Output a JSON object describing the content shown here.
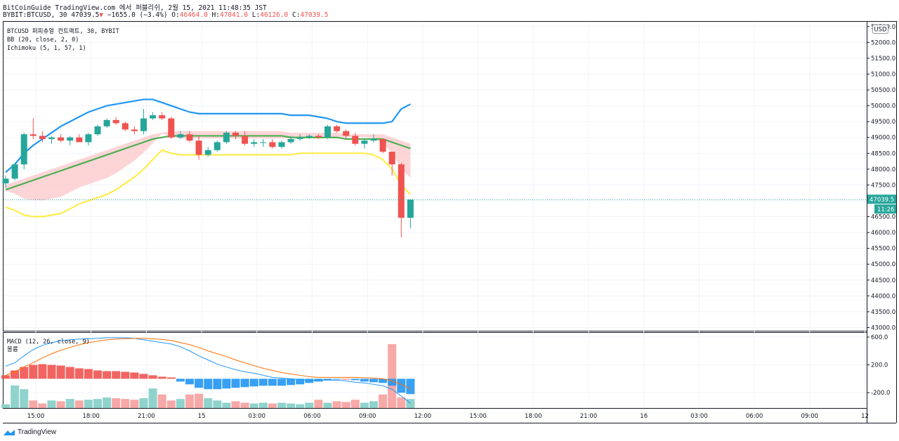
{
  "header": {
    "line1": "BitCoinGuide TradingView.com 에서 퍼블리쉬, 2월 15, 2021 11:48:35 JST",
    "symbol": "BYBIT:BTCUSD, 30",
    "last": "47039.5",
    "change_arrow": "▼",
    "change": "−1655.0 (−3.4%)",
    "o_label": "O:",
    "o": "46464.0",
    "h_label": "H:",
    "h": "47041.0",
    "l_label": "L:",
    "l": "46126.0",
    "c_label": "C:",
    "c": "47039.5"
  },
  "legend": {
    "line1": "BTCUSD 퍼피츄얼 컨트랙트, 30, BYBIT",
    "line2": "BB (20, close, 2, 0)",
    "line3": "Ichimoku (5, 1, 57, 1)"
  },
  "macd_legend": {
    "line1": "MACD (12, 26, close, 9)",
    "line2": "볼륨"
  },
  "currency": "USD",
  "price_tag": "47039.5",
  "countdown": "11:26",
  "footer": {
    "brand": "TradingView"
  },
  "colors": {
    "up": "#26a69a",
    "down": "#ef5350",
    "bb_upper": "#2196f3",
    "bb_basis": "#4caf50",
    "ichimoku_lead": "#ffeb3b",
    "cloud": "#fccbcd",
    "macd_line": "#2196f3",
    "signal_line": "#ff6d00"
  },
  "chart_data": [
    {
      "type": "candlestick",
      "title": "BTCUSD 퍼피츄얼 컨트랙트, 30, BYBIT",
      "y_ticks": [
        "50000.0",
        "49500.0",
        "49000.0",
        "48500.0",
        "48000.0",
        "47500.0",
        "47000.0",
        "46500.0",
        "46000.0",
        "45500.0",
        "45000.0",
        "44500.0",
        "44000.0",
        "43500.0",
        "43000.0"
      ],
      "y_ticks_top_partial": [
        "52500.0",
        "52000.0",
        "51500.0",
        "51000.0",
        "50500.0"
      ],
      "ylim": [
        42900,
        52650
      ],
      "x_ticks": [
        "15:00",
        "18:00",
        "21:00",
        "15",
        "03:00",
        "06:00",
        "09:00",
        "12:00",
        "15:00",
        "18:00",
        "21:00",
        "16",
        "03:00",
        "06:00",
        "09:00",
        "12"
      ],
      "last_price": 47039.5,
      "candles": [
        {
          "o": 47550,
          "h": 47800,
          "l": 47400,
          "c": 47700
        },
        {
          "o": 47700,
          "h": 48200,
          "l": 47650,
          "c": 48150
        },
        {
          "o": 48150,
          "h": 49150,
          "l": 48000,
          "c": 49100
        },
        {
          "o": 49100,
          "h": 49600,
          "l": 48950,
          "c": 49050
        },
        {
          "o": 49050,
          "h": 49200,
          "l": 48850,
          "c": 48950
        },
        {
          "o": 48950,
          "h": 49050,
          "l": 48800,
          "c": 49000
        },
        {
          "o": 49000,
          "h": 49100,
          "l": 48850,
          "c": 48900
        },
        {
          "o": 48900,
          "h": 49050,
          "l": 48750,
          "c": 49000
        },
        {
          "o": 49000,
          "h": 49100,
          "l": 48850,
          "c": 48850
        },
        {
          "o": 48850,
          "h": 49150,
          "l": 48750,
          "c": 49100
        },
        {
          "o": 49100,
          "h": 49400,
          "l": 49050,
          "c": 49350
        },
        {
          "o": 49350,
          "h": 49600,
          "l": 49300,
          "c": 49550
        },
        {
          "o": 49550,
          "h": 49650,
          "l": 49400,
          "c": 49450
        },
        {
          "o": 49450,
          "h": 49500,
          "l": 49200,
          "c": 49250
        },
        {
          "o": 49250,
          "h": 49350,
          "l": 49100,
          "c": 49200
        },
        {
          "o": 49200,
          "h": 49900,
          "l": 49100,
          "c": 49600
        },
        {
          "o": 49600,
          "h": 49800,
          "l": 49550,
          "c": 49700
        },
        {
          "o": 49700,
          "h": 49800,
          "l": 49550,
          "c": 49600
        },
        {
          "o": 49600,
          "h": 49650,
          "l": 48950,
          "c": 49000
        },
        {
          "o": 49000,
          "h": 49200,
          "l": 48950,
          "c": 49100
        },
        {
          "o": 49100,
          "h": 49200,
          "l": 48850,
          "c": 48900
        },
        {
          "o": 48900,
          "h": 49050,
          "l": 48300,
          "c": 48450
        },
        {
          "o": 48450,
          "h": 48700,
          "l": 48400,
          "c": 48600
        },
        {
          "o": 48600,
          "h": 48900,
          "l": 48550,
          "c": 48850
        },
        {
          "o": 48850,
          "h": 49200,
          "l": 48800,
          "c": 49150
        },
        {
          "o": 49150,
          "h": 49200,
          "l": 48950,
          "c": 49050
        },
        {
          "o": 49050,
          "h": 49200,
          "l": 48750,
          "c": 48800
        },
        {
          "o": 48800,
          "h": 48950,
          "l": 48700,
          "c": 48850
        },
        {
          "o": 48850,
          "h": 48950,
          "l": 48700,
          "c": 48850
        },
        {
          "o": 48850,
          "h": 48950,
          "l": 48650,
          "c": 48700
        },
        {
          "o": 48700,
          "h": 48900,
          "l": 48650,
          "c": 48850
        },
        {
          "o": 48850,
          "h": 49050,
          "l": 48800,
          "c": 48950
        },
        {
          "o": 48950,
          "h": 49100,
          "l": 48900,
          "c": 49000
        },
        {
          "o": 49000,
          "h": 49100,
          "l": 48950,
          "c": 49050
        },
        {
          "o": 49050,
          "h": 49100,
          "l": 48950,
          "c": 49000
        },
        {
          "o": 49000,
          "h": 49400,
          "l": 48950,
          "c": 49350
        },
        {
          "o": 49350,
          "h": 49400,
          "l": 49150,
          "c": 49200
        },
        {
          "o": 49200,
          "h": 49250,
          "l": 48950,
          "c": 49050
        },
        {
          "o": 49050,
          "h": 49150,
          "l": 48750,
          "c": 48800
        },
        {
          "o": 48800,
          "h": 48950,
          "l": 48650,
          "c": 48900
        },
        {
          "o": 48900,
          "h": 49100,
          "l": 48850,
          "c": 48950
        },
        {
          "o": 48950,
          "h": 48950,
          "l": 48500,
          "c": 48550
        },
        {
          "o": 48550,
          "h": 48550,
          "l": 47800,
          "c": 48150
        },
        {
          "o": 48150,
          "h": 48200,
          "l": 45850,
          "c": 46464
        },
        {
          "o": 46464,
          "h": 47041,
          "l": 46126,
          "c": 47039.5
        }
      ],
      "series": [
        {
          "name": "BB upper",
          "values": [
            47900,
            48150,
            48500,
            48750,
            48950,
            49150,
            49350,
            49500,
            49650,
            49800,
            49900,
            50000,
            50050,
            50100,
            50150,
            50200,
            50200,
            50100,
            50000,
            49900,
            49800,
            49750,
            49750,
            49750,
            49750,
            49750,
            49750,
            49750,
            49750,
            49750,
            49750,
            49700,
            49700,
            49700,
            49650,
            49600,
            49500,
            49450,
            49450,
            49450,
            49450,
            49450,
            49500,
            49900,
            50050
          ]
        },
        {
          "name": "BB basis",
          "values": [
            47350,
            47450,
            47550,
            47650,
            47750,
            47850,
            47950,
            48050,
            48150,
            48250,
            48350,
            48450,
            48550,
            48650,
            48750,
            48850,
            48950,
            49000,
            49050,
            49050,
            49050,
            49050,
            49050,
            49050,
            49050,
            49050,
            49050,
            49050,
            49050,
            49050,
            49050,
            49000,
            49000,
            49000,
            49000,
            49000,
            49000,
            48950,
            48950,
            48950,
            48950,
            48950,
            48850,
            48750,
            48650
          ]
        },
        {
          "name": "Ichimoku lead",
          "values": [
            46800,
            46700,
            46550,
            46500,
            46500,
            46550,
            46600,
            46750,
            46900,
            47000,
            47100,
            47200,
            47350,
            47550,
            47750,
            48000,
            48300,
            48600,
            48500,
            48450,
            48450,
            48450,
            48450,
            48450,
            48450,
            48450,
            48450,
            48450,
            48450,
            48450,
            48450,
            48450,
            48500,
            48500,
            48500,
            48500,
            48500,
            48500,
            48500,
            48500,
            48450,
            48300,
            48000,
            47500,
            47200
          ]
        }
      ]
    },
    {
      "type": "bar",
      "title": "MACD (12, 26, close, 9)",
      "y_ticks": [
        "600.0",
        "200.0",
        "-200.0"
      ],
      "ylim": [
        -420,
        660
      ],
      "histogram": [
        50,
        120,
        170,
        200,
        210,
        200,
        190,
        170,
        150,
        140,
        120,
        110,
        110,
        100,
        90,
        70,
        50,
        30,
        20,
        -40,
        -80,
        -130,
        -150,
        -150,
        -140,
        -130,
        -120,
        -110,
        -100,
        -100,
        -100,
        -90,
        -80,
        -60,
        -40,
        -20,
        -10,
        0,
        -20,
        -40,
        -50,
        -60,
        -100,
        -200,
        -220
      ],
      "macd": [
        180,
        230,
        330,
        420,
        480,
        520,
        545,
        560,
        570,
        575,
        580,
        590,
        590,
        590,
        580,
        560,
        540,
        520,
        500,
        460,
        400,
        330,
        270,
        210,
        170,
        130,
        100,
        80,
        50,
        20,
        10,
        0,
        -10,
        -20,
        -20,
        -20,
        -20,
        -30,
        -50,
        -60,
        -80,
        -100,
        -150,
        -250,
        -350
      ],
      "signal": [
        50,
        100,
        170,
        230,
        300,
        360,
        410,
        450,
        490,
        520,
        540,
        560,
        570,
        575,
        580,
        580,
        575,
        565,
        550,
        520,
        490,
        450,
        400,
        360,
        320,
        270,
        230,
        190,
        150,
        120,
        90,
        70,
        50,
        30,
        20,
        20,
        20,
        20,
        20,
        15,
        10,
        0,
        -30,
        -80,
        -150
      ],
      "volume": [
        0.05,
        0.3,
        0.25,
        0.1,
        0.06,
        0.1,
        0.09,
        0.12,
        0.1,
        0.11,
        0.12,
        0.14,
        0.13,
        0.12,
        0.11,
        0.13,
        0.26,
        0.18,
        0.1,
        0.12,
        0.18,
        0.19,
        0.13,
        0.1,
        0.07,
        0.09,
        0.07,
        0.06,
        0.07,
        0.06,
        0.07,
        0.06,
        0.05,
        0.07,
        0.11,
        0.07,
        0.09,
        0.08,
        0.11,
        0.07,
        0.09,
        0.18,
        0.85,
        0.14,
        0.12
      ]
    }
  ]
}
